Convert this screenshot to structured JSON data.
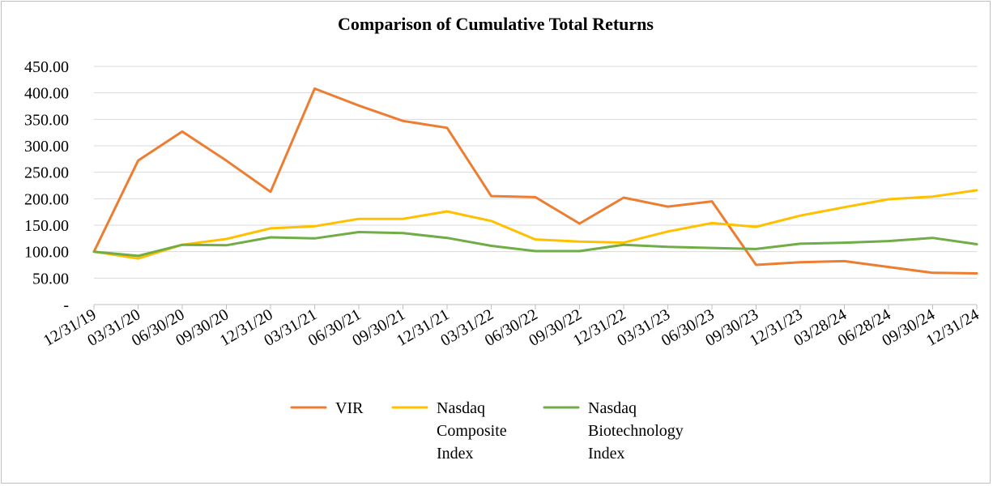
{
  "chart_data": {
    "type": "line",
    "title": "Comparison of Cumulative Total Returns",
    "xlabel": "",
    "ylabel": "",
    "ylim": [
      0,
      450
    ],
    "grid": true,
    "legend_position": "bottom",
    "y_tick_labels": [
      "-",
      "50.00",
      "100.00",
      "150.00",
      "200.00",
      "250.00",
      "300.00",
      "350.00",
      "400.00",
      "450.00"
    ],
    "y_tick_values": [
      0,
      50,
      100,
      150,
      200,
      250,
      300,
      350,
      400,
      450
    ],
    "categories": [
      "12/31/19",
      "03/31/20",
      "06/30/20",
      "09/30/20",
      "12/31/20",
      "03/31/21",
      "06/30/21",
      "09/30/21",
      "12/31/21",
      "03/31/22",
      "06/30/22",
      "09/30/22",
      "12/31/22",
      "03/31/23",
      "06/30/23",
      "09/30/23",
      "12/31/23",
      "03/28/24",
      "06/28/24",
      "09/30/24",
      "12/31/24"
    ],
    "series": [
      {
        "name": "VIR",
        "legend_lines": [
          "VIR"
        ],
        "color": "#ED7D31",
        "values": [
          100,
          272,
          327,
          272,
          213,
          408,
          376,
          347,
          334,
          205,
          203,
          153,
          202,
          185,
          195,
          75,
          80,
          82,
          71,
          60,
          59
        ]
      },
      {
        "name": "Nasdaq Composite Index",
        "legend_lines": [
          "Nasdaq",
          "Composite",
          "Index"
        ],
        "color": "#FFC000",
        "values": [
          100,
          87,
          113,
          124,
          144,
          148,
          162,
          162,
          176,
          158,
          123,
          119,
          117,
          138,
          154,
          147,
          168,
          184,
          199,
          204,
          216
        ]
      },
      {
        "name": "Nasdaq Biotechnology Index",
        "legend_lines": [
          "Nasdaq",
          "Biotechnology",
          "Index"
        ],
        "color": "#70AD47",
        "values": [
          100,
          92,
          113,
          112,
          127,
          125,
          137,
          135,
          126,
          111,
          101,
          101,
          113,
          109,
          107,
          105,
          115,
          117,
          120,
          126,
          114
        ]
      }
    ]
  }
}
